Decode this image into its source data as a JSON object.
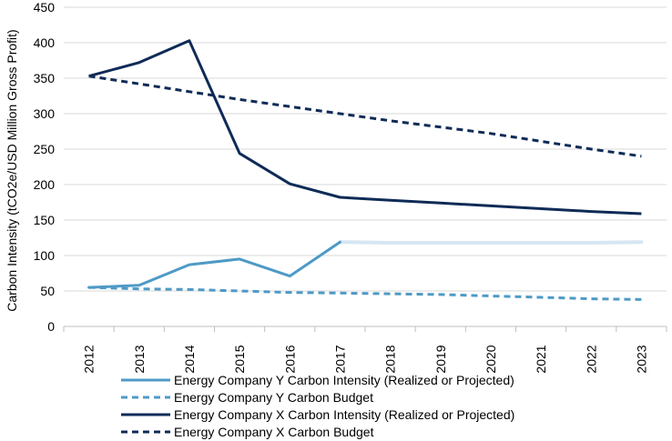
{
  "chart_data": {
    "type": "line",
    "title": "",
    "xlabel": "",
    "ylabel": "Carbon Intensity (tCO2e/USD Million Gross Profit)",
    "categories": [
      "2012",
      "2013",
      "2014",
      "2015",
      "2016",
      "2017",
      "2018",
      "2019",
      "2020",
      "2021",
      "2022",
      "2023"
    ],
    "ylim": [
      0,
      450
    ],
    "yticks": [
      0,
      50,
      100,
      150,
      200,
      250,
      300,
      350,
      400,
      450
    ],
    "grid": true,
    "legend_position": "bottom",
    "series": [
      {
        "name": "Energy Company Y Carbon Intensity (Realized or Projected)",
        "color": "#4e9ac6",
        "projected_color": "#d6e6f2",
        "dash": "solid",
        "values": [
          55,
          58,
          87,
          95,
          71,
          119,
          118,
          118,
          118,
          118,
          118,
          119
        ],
        "realized_until_index": 5
      },
      {
        "name": "Energy Company Y Carbon Budget",
        "color": "#4e9ac6",
        "dash": "dashed",
        "values": [
          55,
          53,
          52,
          50,
          48,
          47,
          46,
          45,
          43,
          41,
          39,
          38
        ]
      },
      {
        "name": "Energy Company X Carbon Intensity (Realized or Projected)",
        "color": "#0f2b57",
        "dash": "solid",
        "values": [
          353,
          372,
          403,
          244,
          201,
          182,
          178,
          174,
          170,
          166,
          162,
          159
        ]
      },
      {
        "name": "Energy Company X Carbon Budget",
        "color": "#0f2b57",
        "dash": "dashed",
        "values": [
          353,
          342,
          331,
          320,
          310,
          300,
          290,
          281,
          272,
          261,
          250,
          240
        ]
      }
    ]
  }
}
